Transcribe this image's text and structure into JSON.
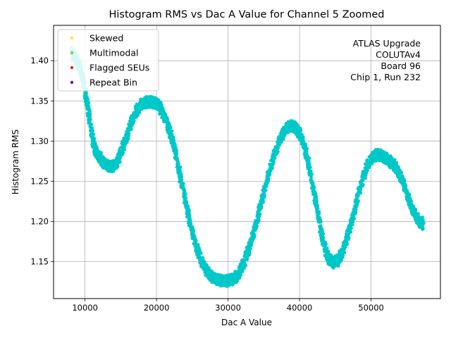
{
  "chart_data": {
    "type": "scatter",
    "title": "Histogram RMS vs Dac A Value for Channel 5 Zoomed",
    "xlabel": "Dac A Value",
    "ylabel": "Histogram RMS",
    "xlim": [
      5600,
      59700
    ],
    "ylim": [
      1.104,
      1.444
    ],
    "grid": true,
    "x_ticks": [
      10000,
      20000,
      30000,
      40000,
      50000
    ],
    "x_tick_labels": [
      "10000",
      "20000",
      "30000",
      "40000",
      "50000"
    ],
    "y_ticks": [
      1.15,
      1.2,
      1.25,
      1.3,
      1.35,
      1.4
    ],
    "y_tick_labels": [
      "1.15",
      "1.20",
      "1.25",
      "1.30",
      "1.35",
      "1.40"
    ],
    "legend": {
      "placement": "top-left",
      "entries": [
        {
          "label": "Skewed",
          "color": "#fde725"
        },
        {
          "label": "Multimodal",
          "color": "#7ad151"
        },
        {
          "label": "Flagged SEUs",
          "color": "#d62728"
        },
        {
          "label": "Repeat Bin",
          "color": "#6a1b8f"
        }
      ]
    },
    "annotation": [
      "ATLAS Upgrade",
      "COLUTAv4",
      "Board 96",
      "Chip 1, Run 232"
    ],
    "series": [
      {
        "name": "Histogram RMS",
        "color": "#00c8c8",
        "marker": "circle",
        "points": [
          [
            8200,
            1.41
          ],
          [
            8600,
            1.405
          ],
          [
            9000,
            1.398
          ],
          [
            9400,
            1.388
          ],
          [
            9800,
            1.372
          ],
          [
            10200,
            1.352
          ],
          [
            10600,
            1.33
          ],
          [
            11000,
            1.305
          ],
          [
            11400,
            1.29
          ],
          [
            11800,
            1.283
          ],
          [
            12400,
            1.275
          ],
          [
            13000,
            1.27
          ],
          [
            13600,
            1.268
          ],
          [
            14200,
            1.27
          ],
          [
            14800,
            1.28
          ],
          [
            15400,
            1.295
          ],
          [
            16000,
            1.31
          ],
          [
            16600,
            1.325
          ],
          [
            17200,
            1.338
          ],
          [
            17800,
            1.345
          ],
          [
            18400,
            1.348
          ],
          [
            19000,
            1.349
          ],
          [
            19600,
            1.348
          ],
          [
            20200,
            1.345
          ],
          [
            20800,
            1.337
          ],
          [
            21400,
            1.325
          ],
          [
            22000,
            1.308
          ],
          [
            22600,
            1.287
          ],
          [
            23200,
            1.262
          ],
          [
            23800,
            1.235
          ],
          [
            24400,
            1.21
          ],
          [
            25000,
            1.187
          ],
          [
            25600,
            1.168
          ],
          [
            26200,
            1.153
          ],
          [
            26800,
            1.142
          ],
          [
            27400,
            1.134
          ],
          [
            28000,
            1.129
          ],
          [
            28600,
            1.127
          ],
          [
            29200,
            1.126
          ],
          [
            29800,
            1.126
          ],
          [
            30400,
            1.127
          ],
          [
            31000,
            1.13
          ],
          [
            31600,
            1.137
          ],
          [
            32200,
            1.148
          ],
          [
            32800,
            1.163
          ],
          [
            33400,
            1.18
          ],
          [
            34000,
            1.2
          ],
          [
            34600,
            1.222
          ],
          [
            35200,
            1.243
          ],
          [
            35800,
            1.263
          ],
          [
            36400,
            1.28
          ],
          [
            37000,
            1.296
          ],
          [
            37600,
            1.308
          ],
          [
            38200,
            1.316
          ],
          [
            38800,
            1.319
          ],
          [
            39400,
            1.317
          ],
          [
            40000,
            1.31
          ],
          [
            40600,
            1.296
          ],
          [
            41200,
            1.275
          ],
          [
            41800,
            1.248
          ],
          [
            42400,
            1.218
          ],
          [
            43000,
            1.188
          ],
          [
            43600,
            1.165
          ],
          [
            44200,
            1.152
          ],
          [
            44800,
            1.148
          ],
          [
            45400,
            1.152
          ],
          [
            46000,
            1.162
          ],
          [
            46600,
            1.178
          ],
          [
            47200,
            1.197
          ],
          [
            47800,
            1.219
          ],
          [
            48400,
            1.24
          ],
          [
            49000,
            1.258
          ],
          [
            49600,
            1.272
          ],
          [
            50200,
            1.28
          ],
          [
            50800,
            1.283
          ],
          [
            51400,
            1.282
          ],
          [
            52000,
            1.279
          ],
          [
            52600,
            1.275
          ],
          [
            53200,
            1.27
          ],
          [
            53800,
            1.262
          ],
          [
            54400,
            1.25
          ],
          [
            55000,
            1.235
          ],
          [
            55600,
            1.22
          ],
          [
            56200,
            1.208
          ],
          [
            56800,
            1.2
          ],
          [
            57300,
            1.197
          ]
        ]
      }
    ]
  }
}
